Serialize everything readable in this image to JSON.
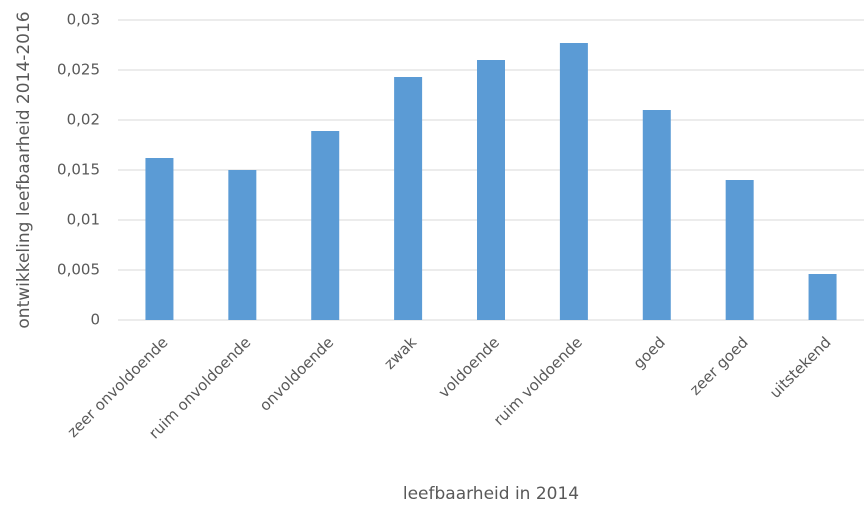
{
  "chart_data": {
    "type": "bar",
    "x_label": "leefbaarheid in 2014",
    "y_label": "ontwikkeling leefbaarheid 2014-2016",
    "categories": [
      "zeer onvoldoende",
      "ruim onvoldoende",
      "onvoldoende",
      "zwak",
      "voldoende",
      "ruim voldoende",
      "goed",
      "zeer goed",
      "uitstekend"
    ],
    "values": [
      0.0162,
      0.015,
      0.0189,
      0.0243,
      0.026,
      0.0277,
      0.021,
      0.014,
      0.0046
    ],
    "color": "#5b9bd5",
    "ylim": [
      0,
      0.03
    ],
    "yticks": [
      0,
      {
        "value": 0.005,
        "label": "0,005"
      },
      {
        "value": 0.01,
        "label": "0,01"
      },
      {
        "value": 0.015,
        "label": "0,015"
      },
      {
        "value": 0.02,
        "label": "0,02"
      },
      {
        "value": 0.025,
        "label": "0,025"
      },
      {
        "value": 0.03,
        "label": "0,03"
      }
    ],
    "grid": true
  }
}
